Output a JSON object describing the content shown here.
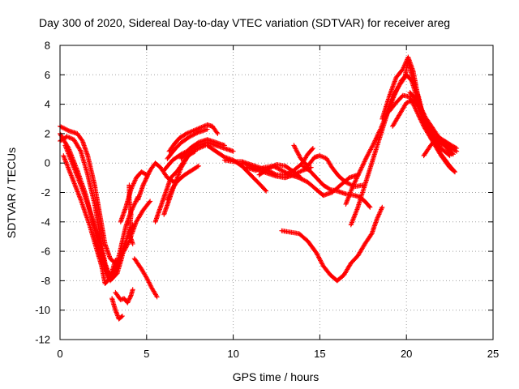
{
  "chart_data": {
    "type": "scatter",
    "title": "Day 300 of 2020, Sidereal Day-to-day VTEC variation (SDTVAR) for receiver areg",
    "xlabel": "GPS time / hours",
    "ylabel": "SDTVAR / TECUs",
    "xlim": [
      0,
      25
    ],
    "ylim": [
      -12,
      8
    ],
    "xticks": [
      0,
      5,
      10,
      15,
      20,
      25
    ],
    "yticks": [
      -12,
      -10,
      -8,
      -6,
      -4,
      -2,
      0,
      2,
      4,
      6,
      8
    ],
    "grid": true,
    "marker": "+",
    "color": "#ff0000",
    "arcs": [
      [
        [
          0.0,
          2.5
        ],
        [
          0.5,
          2.2
        ],
        [
          1.0,
          2.0
        ],
        [
          1.3,
          1.5
        ],
        [
          1.6,
          0.5
        ],
        [
          2.0,
          -1.5
        ],
        [
          2.3,
          -3.5
        ],
        [
          2.6,
          -5.5
        ],
        [
          2.9,
          -6.5
        ],
        [
          3.2,
          -6.8
        ],
        [
          3.6,
          -6.2
        ],
        [
          4.0,
          -5.3
        ],
        [
          4.4,
          -4.0
        ],
        [
          4.8,
          -3.2
        ],
        [
          5.2,
          -2.6
        ]
      ],
      [
        [
          0.0,
          1.5
        ],
        [
          0.4,
          1.8
        ],
        [
          0.8,
          1.6
        ],
        [
          1.2,
          0.8
        ],
        [
          1.6,
          -0.8
        ],
        [
          2.0,
          -2.8
        ],
        [
          2.3,
          -4.8
        ],
        [
          2.6,
          -6.8
        ],
        [
          2.9,
          -7.8
        ],
        [
          3.2,
          -7.3
        ],
        [
          3.5,
          -5.8
        ],
        [
          3.8,
          -4.3
        ],
        [
          4.1,
          -3.3
        ],
        [
          4.5,
          -2.3
        ]
      ],
      [
        [
          0.0,
          2.0
        ],
        [
          0.5,
          1.0
        ],
        [
          1.0,
          -0.5
        ],
        [
          1.5,
          -2.2
        ],
        [
          2.0,
          -4.5
        ],
        [
          2.4,
          -6.5
        ],
        [
          2.8,
          -7.8
        ],
        [
          3.3,
          -7.0
        ],
        [
          3.8,
          -5.3
        ],
        [
          4.2,
          -4.2
        ]
      ],
      [
        [
          0.3,
          1.2
        ],
        [
          0.8,
          -0.3
        ],
        [
          1.3,
          -1.8
        ],
        [
          1.8,
          -3.5
        ],
        [
          2.3,
          -5.5
        ],
        [
          2.6,
          -7.0
        ],
        [
          2.9,
          -8.0
        ],
        [
          3.3,
          -7.5
        ],
        [
          3.6,
          -6.3
        ]
      ],
      [
        [
          0.2,
          0.5
        ],
        [
          0.7,
          -1.0
        ],
        [
          1.2,
          -2.5
        ],
        [
          1.7,
          -4.2
        ],
        [
          2.1,
          -5.8
        ],
        [
          2.4,
          -7.0
        ],
        [
          2.6,
          -8.2
        ],
        [
          2.9,
          -7.8
        ],
        [
          3.2,
          -6.6
        ]
      ],
      [
        [
          3.5,
          -4.0
        ],
        [
          3.8,
          -3.0
        ],
        [
          4.1,
          -1.8
        ],
        [
          4.4,
          -1.0
        ],
        [
          4.7,
          -0.6
        ],
        [
          5.0,
          -0.8
        ]
      ],
      [
        [
          4.5,
          -2.5
        ],
        [
          4.8,
          -1.5
        ],
        [
          5.0,
          -1.0
        ],
        [
          5.2,
          -0.5
        ],
        [
          5.5,
          0.0
        ],
        [
          5.8,
          -0.3
        ],
        [
          6.2,
          -1.0
        ],
        [
          6.6,
          -1.3
        ]
      ],
      [
        [
          4.3,
          -6.5
        ],
        [
          4.7,
          -7.2
        ],
        [
          5.0,
          -7.8
        ],
        [
          5.3,
          -8.5
        ],
        [
          5.6,
          -9.1
        ]
      ],
      [
        [
          3.2,
          -8.8
        ],
        [
          3.5,
          -9.3
        ],
        [
          3.7,
          -9.2
        ],
        [
          3.9,
          -9.5
        ],
        [
          4.1,
          -9.0
        ],
        [
          4.2,
          -8.6
        ]
      ],
      [
        [
          3.0,
          -9.2
        ],
        [
          3.2,
          -10.0
        ],
        [
          3.4,
          -10.6
        ],
        [
          3.6,
          -10.4
        ]
      ],
      [
        [
          4.0,
          -1.5
        ],
        [
          4.0,
          -2.5
        ],
        [
          4.1,
          -3.5
        ],
        [
          4.0,
          -4.8
        ],
        [
          4.2,
          -5.5
        ]
      ],
      [
        [
          5.5,
          -4.0
        ],
        [
          5.8,
          -3.0
        ],
        [
          6.1,
          -2.0
        ],
        [
          6.4,
          -1.0
        ],
        [
          6.8,
          -0.5
        ],
        [
          7.2,
          0.2
        ],
        [
          7.6,
          0.8
        ],
        [
          8.0,
          1.0
        ],
        [
          8.4,
          1.2
        ]
      ],
      [
        [
          6.2,
          -2.5
        ],
        [
          6.5,
          -1.7
        ],
        [
          6.8,
          -1.2
        ],
        [
          7.2,
          -0.8
        ],
        [
          7.6,
          -0.5
        ],
        [
          8.0,
          -0.2
        ]
      ],
      [
        [
          6.0,
          -3.5
        ],
        [
          6.3,
          -2.5
        ],
        [
          6.6,
          -1.5
        ],
        [
          7.0,
          -0.3
        ],
        [
          7.4,
          0.5
        ],
        [
          7.8,
          0.8
        ]
      ],
      [
        [
          6.0,
          -0.5
        ],
        [
          6.5,
          0.2
        ],
        [
          7.0,
          0.6
        ],
        [
          7.5,
          0.9
        ],
        [
          8.0,
          1.2
        ],
        [
          8.5,
          1.4
        ],
        [
          9.0,
          1.2
        ],
        [
          9.5,
          1.0
        ],
        [
          10.0,
          0.8
        ]
      ],
      [
        [
          6.3,
          0.8
        ],
        [
          6.6,
          1.3
        ],
        [
          6.9,
          1.7
        ],
        [
          7.3,
          2.0
        ],
        [
          7.7,
          2.2
        ],
        [
          8.1,
          2.4
        ],
        [
          8.5,
          2.6
        ],
        [
          8.8,
          2.5
        ],
        [
          9.1,
          2.0
        ]
      ],
      [
        [
          6.2,
          0.3
        ],
        [
          6.6,
          0.9
        ],
        [
          7.0,
          1.4
        ],
        [
          7.5,
          1.8
        ],
        [
          8.0,
          2.1
        ],
        [
          8.5,
          2.3
        ]
      ],
      [
        [
          7.0,
          0.3
        ],
        [
          7.5,
          1.0
        ],
        [
          8.0,
          1.4
        ],
        [
          8.5,
          1.6
        ],
        [
          9.0,
          1.4
        ],
        [
          9.5,
          1.2
        ]
      ],
      [
        [
          8.5,
          1.2
        ],
        [
          9.0,
          0.8
        ],
        [
          9.5,
          0.4
        ],
        [
          10.0,
          0.2
        ],
        [
          10.5,
          -0.2
        ],
        [
          11.0,
          -0.8
        ],
        [
          11.5,
          -1.4
        ],
        [
          11.9,
          -1.9
        ]
      ],
      [
        [
          9.5,
          0.2
        ],
        [
          10.0,
          0.1
        ],
        [
          10.5,
          0.1
        ],
        [
          11.0,
          -0.1
        ],
        [
          11.5,
          -0.3
        ],
        [
          12.0,
          -0.5
        ],
        [
          12.5,
          -0.8
        ],
        [
          13.0,
          -0.8
        ],
        [
          13.5,
          -0.5
        ],
        [
          14.0,
          0.0
        ],
        [
          14.3,
          0.6
        ],
        [
          14.6,
          1.0
        ]
      ],
      [
        [
          10.8,
          -0.3
        ],
        [
          11.3,
          -0.5
        ],
        [
          11.8,
          -0.3
        ],
        [
          12.3,
          -0.2
        ],
        [
          12.8,
          -0.5
        ],
        [
          13.3,
          -0.8
        ],
        [
          13.8,
          -1.0
        ],
        [
          14.3,
          -1.3
        ],
        [
          14.8,
          -1.8
        ],
        [
          15.2,
          -2.2
        ],
        [
          15.7,
          -2.0
        ],
        [
          16.2,
          -1.5
        ],
        [
          16.7,
          -1.0
        ],
        [
          17.2,
          -0.8
        ]
      ],
      [
        [
          10.5,
          0.0
        ],
        [
          11.0,
          -0.2
        ],
        [
          11.5,
          -0.5
        ],
        [
          12.0,
          -0.7
        ],
        [
          12.5,
          -0.9
        ],
        [
          13.0,
          -1.0
        ],
        [
          13.5,
          -0.8
        ],
        [
          14.0,
          -0.5
        ],
        [
          14.5,
          -0.3
        ]
      ],
      [
        [
          11.5,
          -0.8
        ],
        [
          12.0,
          -0.4
        ],
        [
          12.5,
          -0.1
        ],
        [
          13.0,
          -0.2
        ],
        [
          13.5,
          -0.6
        ],
        [
          13.9,
          -1.0
        ]
      ],
      [
        [
          12.8,
          -4.6
        ],
        [
          13.3,
          -4.7
        ],
        [
          13.8,
          -4.8
        ],
        [
          14.3,
          -5.3
        ],
        [
          14.8,
          -6.1
        ],
        [
          15.2,
          -7.0
        ],
        [
          15.6,
          -7.6
        ],
        [
          16.0,
          -8.0
        ],
        [
          16.4,
          -7.6
        ],
        [
          16.8,
          -6.8
        ],
        [
          17.2,
          -6.3
        ],
        [
          17.6,
          -5.5
        ],
        [
          18.0,
          -4.8
        ],
        [
          18.3,
          -3.8
        ],
        [
          18.6,
          -3.0
        ]
      ],
      [
        [
          14.0,
          -0.2
        ],
        [
          14.4,
          -0.5
        ],
        [
          14.8,
          -1.0
        ],
        [
          15.2,
          -1.5
        ],
        [
          15.6,
          -1.8
        ],
        [
          16.0,
          -1.9
        ],
        [
          16.5,
          -2.1
        ],
        [
          17.0,
          -2.2
        ],
        [
          17.3,
          -2.3
        ],
        [
          17.6,
          -2.6
        ],
        [
          17.9,
          -3.0
        ]
      ],
      [
        [
          13.5,
          1.2
        ],
        [
          13.9,
          0.3
        ],
        [
          14.3,
          -0.2
        ],
        [
          14.7,
          0.4
        ],
        [
          15.0,
          0.5
        ],
        [
          15.4,
          0.3
        ],
        [
          15.7,
          -0.3
        ],
        [
          16.1,
          -0.9
        ],
        [
          16.5,
          -1.3
        ],
        [
          17.0,
          -1.6
        ],
        [
          17.5,
          -1.5
        ]
      ],
      [
        [
          16.5,
          -2.8
        ],
        [
          16.9,
          -1.6
        ],
        [
          17.3,
          -0.6
        ],
        [
          17.7,
          0.4
        ],
        [
          18.1,
          1.3
        ],
        [
          18.5,
          2.3
        ],
        [
          18.9,
          3.4
        ],
        [
          19.3,
          4.6
        ],
        [
          19.7,
          5.6
        ],
        [
          20.0,
          6.0
        ],
        [
          20.3,
          5.6
        ],
        [
          20.7,
          4.1
        ],
        [
          21.1,
          3.1
        ],
        [
          21.5,
          2.4
        ],
        [
          21.9,
          1.7
        ],
        [
          22.3,
          1.1
        ],
        [
          22.7,
          0.6
        ]
      ],
      [
        [
          16.8,
          -4.2
        ],
        [
          17.2,
          -3.0
        ],
        [
          17.6,
          -1.5
        ],
        [
          18.0,
          0.0
        ],
        [
          18.4,
          1.5
        ],
        [
          18.8,
          3.0
        ],
        [
          19.2,
          4.5
        ],
        [
          19.6,
          5.3
        ],
        [
          19.9,
          5.8
        ],
        [
          20.1,
          7.0
        ],
        [
          20.3,
          6.0
        ],
        [
          20.7,
          4.5
        ],
        [
          21.0,
          3.0
        ],
        [
          21.5,
          2.0
        ],
        [
          22.0,
          1.0
        ],
        [
          22.5,
          0.5
        ]
      ],
      [
        [
          18.6,
          3.0
        ],
        [
          19.0,
          4.5
        ],
        [
          19.4,
          5.8
        ],
        [
          19.8,
          6.4
        ],
        [
          20.1,
          7.2
        ],
        [
          20.4,
          6.2
        ],
        [
          20.7,
          4.3
        ],
        [
          21.1,
          2.8
        ],
        [
          21.5,
          1.6
        ],
        [
          22.0,
          0.6
        ],
        [
          22.5,
          -0.2
        ],
        [
          22.8,
          -0.6
        ]
      ],
      [
        [
          19.0,
          3.5
        ],
        [
          19.4,
          4.1
        ],
        [
          19.8,
          4.6
        ],
        [
          20.2,
          4.5
        ],
        [
          20.6,
          3.5
        ],
        [
          21.0,
          2.5
        ],
        [
          21.5,
          1.5
        ],
        [
          22.0,
          0.5
        ],
        [
          22.5,
          -0.3
        ],
        [
          22.8,
          -0.6
        ]
      ],
      [
        [
          19.2,
          2.5
        ],
        [
          19.6,
          3.3
        ],
        [
          20.0,
          4.1
        ],
        [
          20.4,
          4.3
        ],
        [
          20.8,
          3.6
        ],
        [
          21.2,
          2.6
        ],
        [
          21.7,
          1.6
        ],
        [
          22.2,
          1.2
        ],
        [
          22.6,
          0.6
        ]
      ],
      [
        [
          20.2,
          4.8
        ],
        [
          20.6,
          4.3
        ],
        [
          21.0,
          3.0
        ],
        [
          21.4,
          2.0
        ],
        [
          21.8,
          1.5
        ],
        [
          22.2,
          1.3
        ],
        [
          22.6,
          1.0
        ],
        [
          22.9,
          0.8
        ]
      ],
      [
        [
          21.0,
          0.5
        ],
        [
          21.4,
          1.2
        ],
        [
          21.8,
          1.8
        ],
        [
          22.2,
          1.5
        ],
        [
          22.6,
          1.2
        ],
        [
          22.9,
          1.0
        ]
      ]
    ]
  }
}
